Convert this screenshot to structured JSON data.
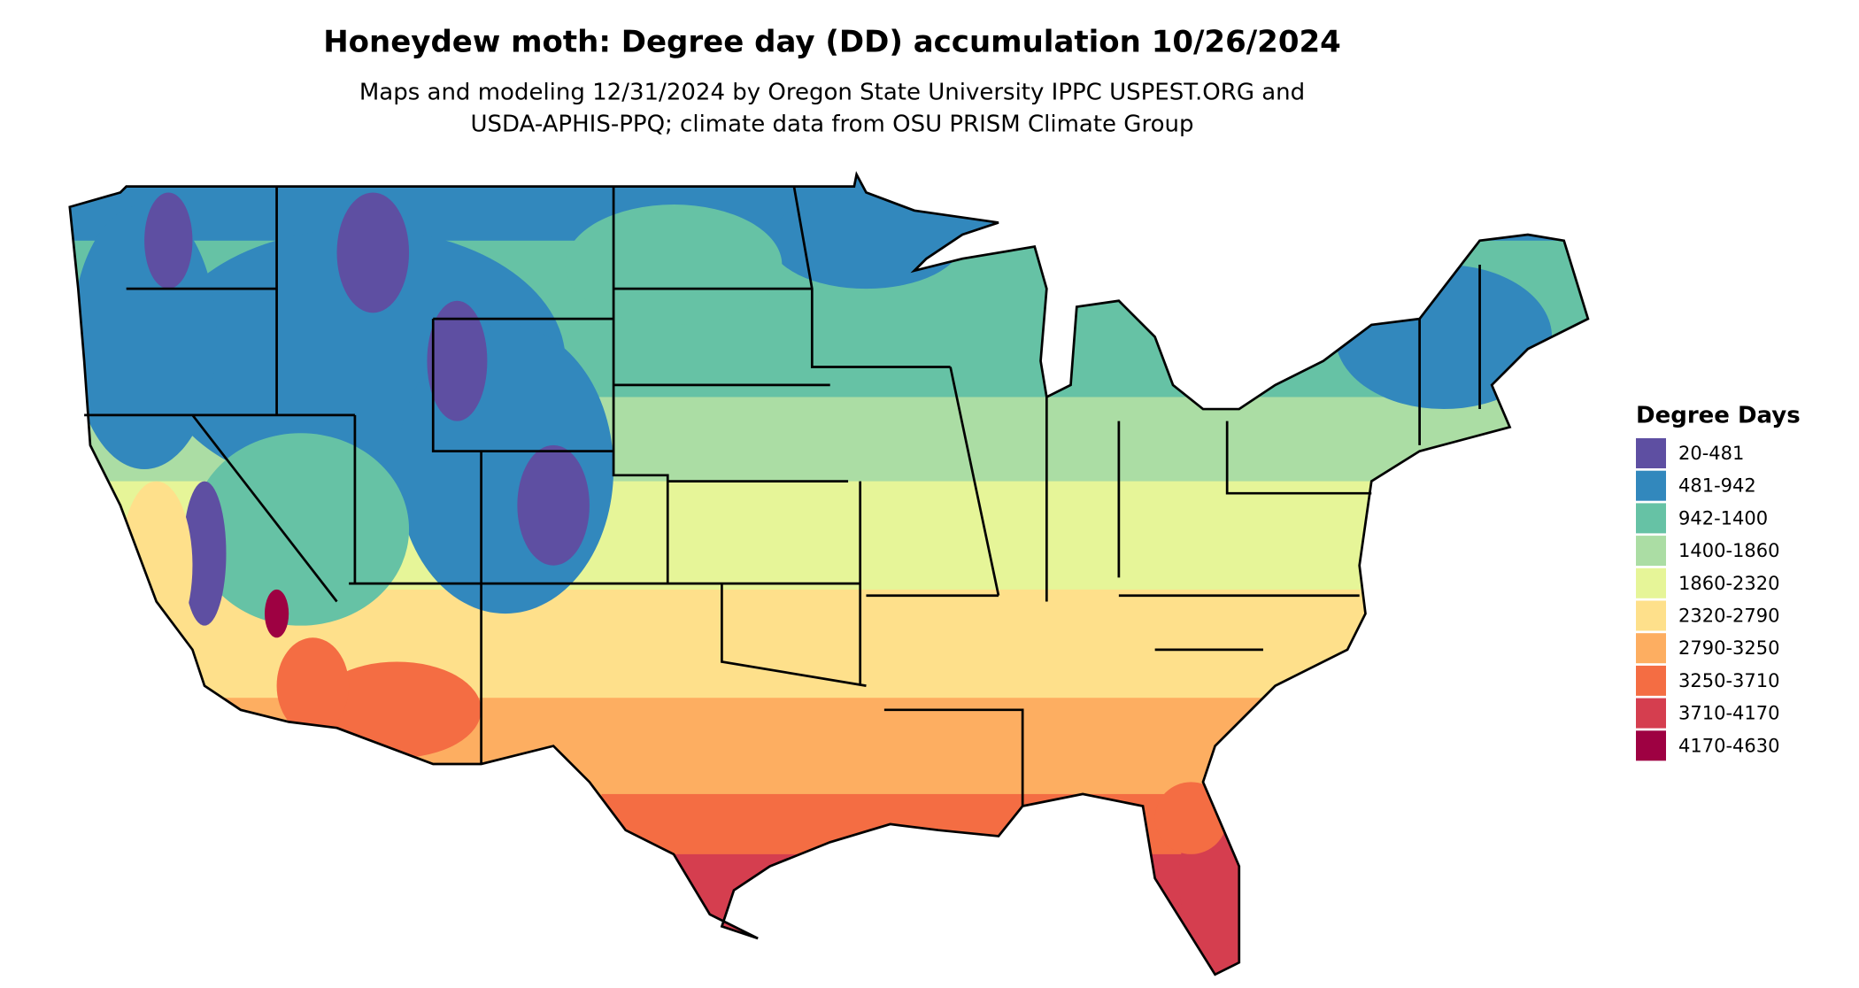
{
  "header": {
    "title": "Honeydew moth: Degree day (DD) accumulation 10/26/2024",
    "subtitle": [
      "Maps and modeling 12/31/2024 by Oregon State University IPPC USPEST.ORG and",
      "USDA-APHIS-PPQ; climate data from OSU PRISM Climate Group"
    ]
  },
  "legend": {
    "title": "Degree Days",
    "items": [
      {
        "label": "20-481",
        "color": "#5e4fa2"
      },
      {
        "label": "481-942",
        "color": "#3288bd"
      },
      {
        "label": "942-1400",
        "color": "#66c2a5"
      },
      {
        "label": "1400-1860",
        "color": "#abdda4"
      },
      {
        "label": "1860-2320",
        "color": "#e6f598"
      },
      {
        "label": "2320-2790",
        "color": "#fee08b"
      },
      {
        "label": "2790-3250",
        "color": "#fdae61"
      },
      {
        "label": "3250-3710",
        "color": "#f46d43"
      },
      {
        "label": "3710-4170",
        "color": "#d53e4f"
      },
      {
        "label": "4170-4630",
        "color": "#9e0142"
      }
    ]
  }
}
